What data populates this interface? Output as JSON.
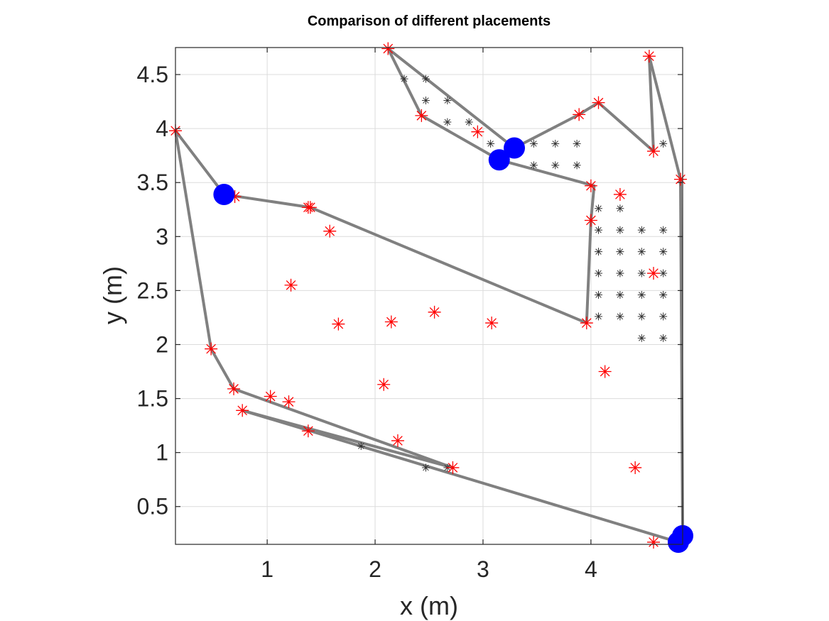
{
  "colors": {
    "path": "#808080",
    "markers_red": "#ff0000",
    "markers_black": "#333333",
    "placements": "#0000ff",
    "grid": "#dcdcdc",
    "axes": "#262626"
  },
  "chart_data": {
    "type": "scatter",
    "title": "Comparison of different placements",
    "xlabel": "x (m)",
    "ylabel": "y (m)",
    "xlim": [
      0.15,
      4.85
    ],
    "ylim": [
      0.15,
      4.75
    ],
    "xticks": [
      1,
      2,
      3,
      4
    ],
    "yticks": [
      0.5,
      1,
      1.5,
      2,
      2.5,
      3,
      3.5,
      4,
      4.5
    ],
    "xtick_labels": [
      "1",
      "2",
      "3",
      "4"
    ],
    "ytick_labels": [
      "0.5",
      "1",
      "1.5",
      "2",
      "2.5",
      "3",
      "3.5",
      "4",
      "4.5"
    ],
    "grid": true,
    "series": [
      {
        "style": "line",
        "color": "#808080",
        "x": [
          0.6,
          1.4,
          3.96,
          4.0,
          4.03,
          3.15,
          2.43,
          2.12,
          3.29,
          3.89,
          4.07,
          4.58,
          4.54,
          4.83,
          4.85,
          4.81,
          0.77,
          2.72,
          0.69,
          0.48,
          0.15,
          0.6
        ],
        "y": [
          3.39,
          3.27,
          2.2,
          3.15,
          3.47,
          3.71,
          4.12,
          4.74,
          3.82,
          4.13,
          4.24,
          3.79,
          4.67,
          3.53,
          0.23,
          0.17,
          1.39,
          0.86,
          1.59,
          1.96,
          3.98,
          3.39
        ]
      },
      {
        "style": "red-star",
        "color": "#ff0000",
        "x": [
          2.12,
          4.54,
          0.15,
          4.07,
          2.43,
          2.95,
          3.89,
          4.58,
          4.83,
          0.7,
          4.0,
          4.27,
          1.4,
          1.38,
          1.58,
          4.0,
          1.22,
          4.58,
          2.55,
          1.66,
          2.15,
          3.08,
          3.96,
          0.48,
          4.13,
          2.08,
          0.69,
          1.03,
          1.2,
          0.77,
          1.38,
          2.21,
          2.72,
          4.41,
          4.58
        ],
        "y": [
          4.74,
          4.67,
          3.98,
          4.24,
          4.12,
          3.97,
          4.13,
          3.79,
          3.53,
          3.37,
          3.47,
          3.39,
          3.27,
          3.27,
          3.05,
          3.15,
          2.55,
          2.66,
          2.3,
          2.19,
          2.21,
          2.2,
          2.2,
          1.96,
          1.75,
          1.63,
          1.59,
          1.52,
          1.47,
          1.39,
          1.2,
          1.11,
          0.86,
          0.86,
          0.17
        ]
      },
      {
        "style": "black-star",
        "color": "#333333",
        "x": [
          2.27,
          2.47,
          2.47,
          2.67,
          2.67,
          2.87,
          3.07,
          3.47,
          3.67,
          3.87,
          3.47,
          3.67,
          3.87,
          4.67,
          4.07,
          4.27,
          4.07,
          4.27,
          4.47,
          4.67,
          4.07,
          4.27,
          4.47,
          4.67,
          4.07,
          4.27,
          4.47,
          4.67,
          4.07,
          4.27,
          4.47,
          4.67,
          4.07,
          4.27,
          4.47,
          4.67,
          4.47,
          4.67,
          1.87,
          2.47,
          2.67
        ],
        "y": [
          4.46,
          4.46,
          4.26,
          4.26,
          4.06,
          4.06,
          3.86,
          3.86,
          3.86,
          3.86,
          3.66,
          3.66,
          3.66,
          3.86,
          3.26,
          3.26,
          3.06,
          3.06,
          3.06,
          3.06,
          2.86,
          2.86,
          2.86,
          2.86,
          2.66,
          2.66,
          2.66,
          2.66,
          2.46,
          2.46,
          2.46,
          2.46,
          2.26,
          2.26,
          2.26,
          2.26,
          2.06,
          2.06,
          1.06,
          0.86,
          0.86
        ]
      },
      {
        "style": "blue-dot",
        "color": "#0000ff",
        "x": [
          0.6,
          3.29,
          3.15,
          4.85,
          4.81
        ],
        "y": [
          3.39,
          3.82,
          3.71,
          0.23,
          0.17
        ]
      }
    ]
  }
}
